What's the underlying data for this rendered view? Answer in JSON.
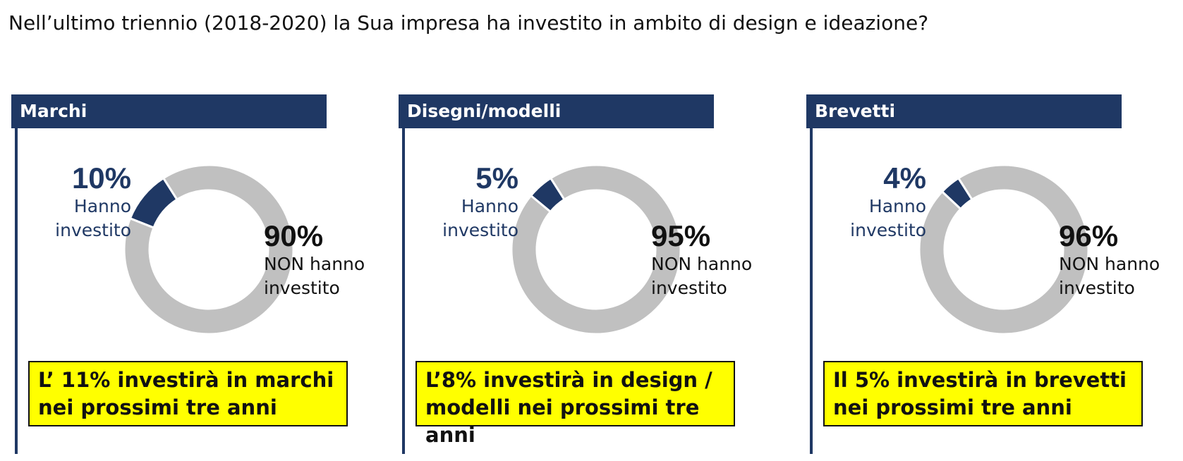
{
  "title": "Nell’ultimo triennio (2018-2020) la Sua impresa ha investito in ambito di design e ideazione?",
  "colors": {
    "navy": "#1f3864",
    "gray": "#c0c0c0",
    "note_bg": "#ffff00"
  },
  "panels": [
    {
      "header": "Marchi",
      "invested": {
        "pct": "10%",
        "label_line1": "Hanno",
        "label_line2": "investito"
      },
      "not_invested": {
        "pct": "90%",
        "label_line1": "NON hanno",
        "label_line2": "investito"
      },
      "note_line1": "L’ 11% investirà in marchi",
      "note_line2": "nei prossimi tre anni"
    },
    {
      "header": "Disegni/modelli",
      "invested": {
        "pct": "5%",
        "label_line1": "Hanno",
        "label_line2": "investito"
      },
      "not_invested": {
        "pct": "95%",
        "label_line1": "NON hanno",
        "label_line2": "investito"
      },
      "note_line1": "L’8% investirà in design /",
      "note_line2": "modelli nei prossimi tre anni"
    },
    {
      "header": "Brevetti",
      "invested": {
        "pct": "4%",
        "label_line1": "Hanno",
        "label_line2": "investito"
      },
      "not_invested": {
        "pct": "96%",
        "label_line1": "NON hanno",
        "label_line2": "investito"
      },
      "note_line1": "Il 5% investirà in brevetti",
      "note_line2": "nei prossimi tre anni"
    }
  ],
  "chart_data": [
    {
      "type": "pie",
      "title": "Marchi",
      "categories": [
        "Hanno investito",
        "NON hanno investito"
      ],
      "values": [
        10,
        90
      ],
      "colors": [
        "#1f3864",
        "#c0c0c0"
      ]
    },
    {
      "type": "pie",
      "title": "Disegni/modelli",
      "categories": [
        "Hanno investito",
        "NON hanno investito"
      ],
      "values": [
        5,
        95
      ],
      "colors": [
        "#1f3864",
        "#c0c0c0"
      ]
    },
    {
      "type": "pie",
      "title": "Brevetti",
      "categories": [
        "Hanno investito",
        "NON hanno investito"
      ],
      "values": [
        4,
        96
      ],
      "colors": [
        "#1f3864",
        "#c0c0c0"
      ]
    }
  ]
}
